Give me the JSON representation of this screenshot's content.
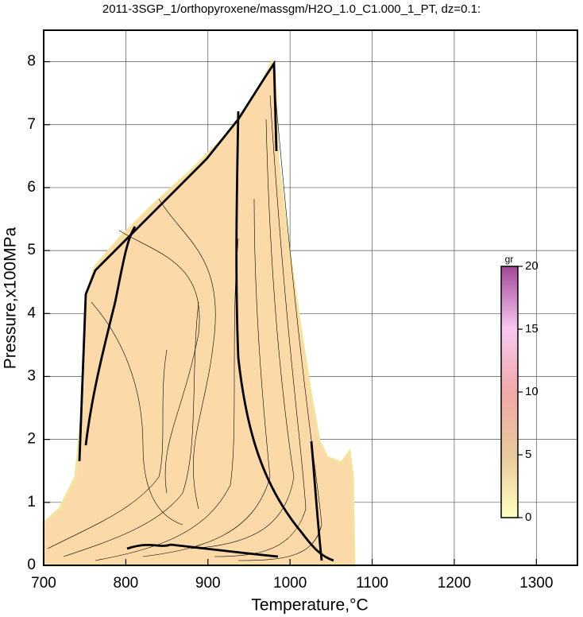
{
  "chart_data": {
    "type": "contour",
    "title": "2011-3SGP_1/orthopyroxene/massgm/H2O_1.0_C1.000_1_PT, dz=0.1:",
    "x_label": "Temperature,°C",
    "y_label": "Pressure,x100MPa",
    "xlim": [
      700,
      1350
    ],
    "ylim": [
      0,
      8.5
    ],
    "xticks": [
      700,
      800,
      900,
      1000,
      1100,
      1200,
      1300
    ],
    "yticks": [
      0,
      1,
      2,
      3,
      4,
      5,
      6,
      7,
      8
    ],
    "grid": true,
    "colorbar": {
      "label": "gr",
      "lim": [
        0,
        20
      ],
      "ticks": [
        0,
        5,
        10,
        15,
        20
      ],
      "colors": [
        "#ffffc0",
        "#e8c89a",
        "#f0a8a8",
        "#f8c8f0",
        "#a04898"
      ]
    }
  }
}
